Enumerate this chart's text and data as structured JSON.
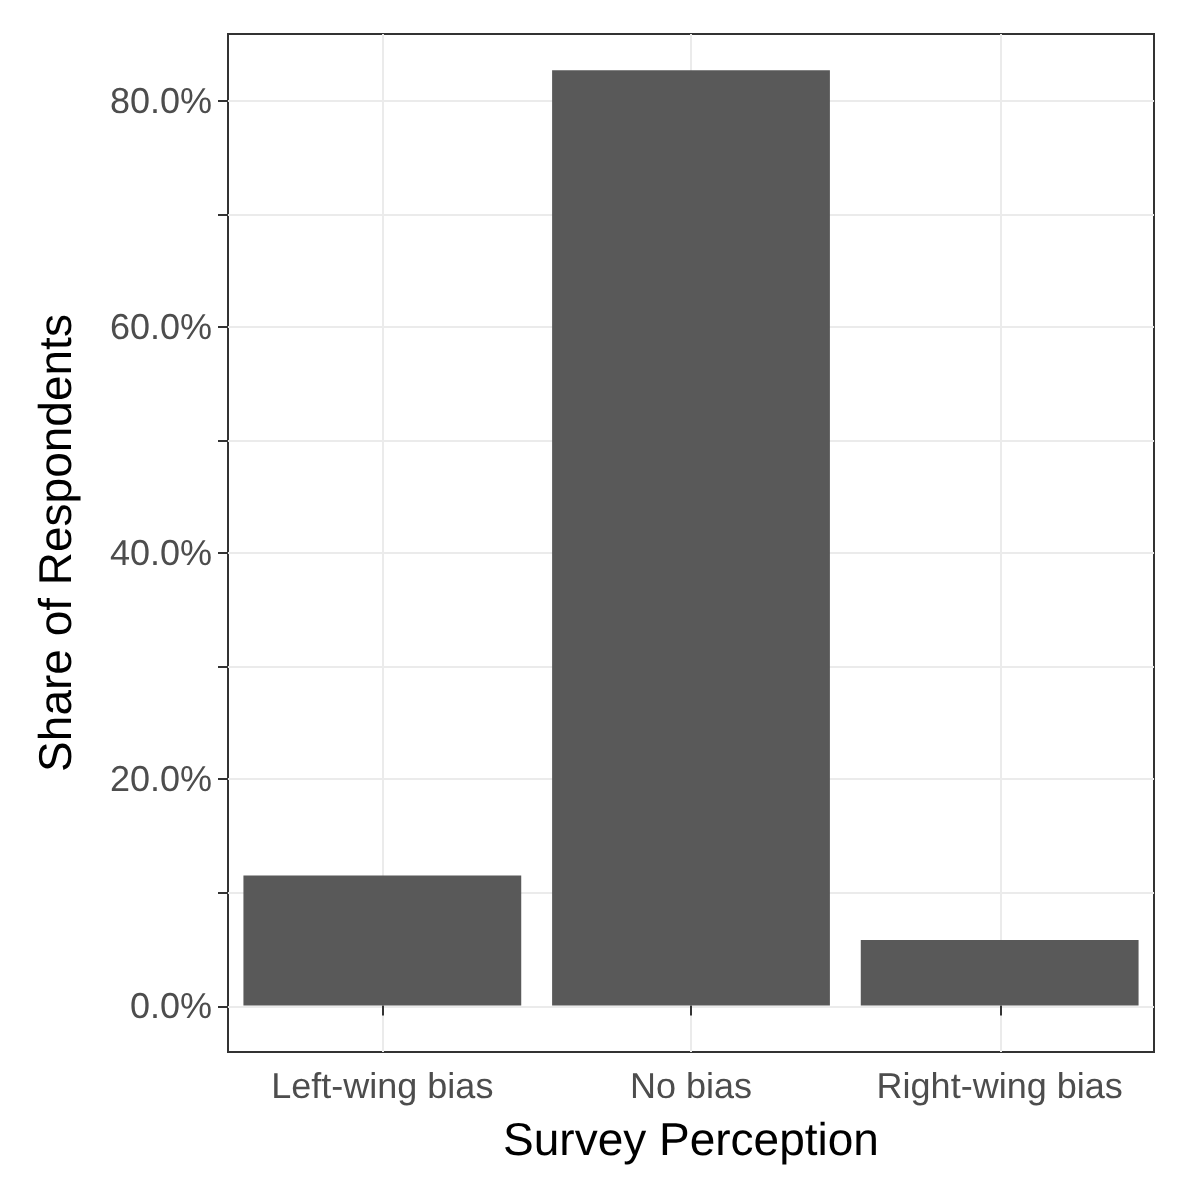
{
  "chart_data": {
    "type": "bar",
    "xlabel": "Survey Perception",
    "ylabel": "Share of Respondents",
    "categories": [
      "Left-wing bias",
      "No bias",
      "Right-wing bias"
    ],
    "values": [
      11.5,
      82.7,
      5.8
    ],
    "color": "#595959",
    "ylim": [
      -4.1,
      85.9
    ],
    "yticks": [
      {
        "value": 0,
        "label": "0.0%"
      },
      {
        "value": 10,
        "label": null
      },
      {
        "value": 20,
        "label": "20.0%"
      },
      {
        "value": 30,
        "label": null
      },
      {
        "value": 40,
        "label": "40.0%"
      },
      {
        "value": 50,
        "label": null
      },
      {
        "value": 60,
        "label": "60.0%"
      },
      {
        "value": 70,
        "label": null
      },
      {
        "value": 80,
        "label": "80.0%"
      }
    ],
    "grid": true
  }
}
